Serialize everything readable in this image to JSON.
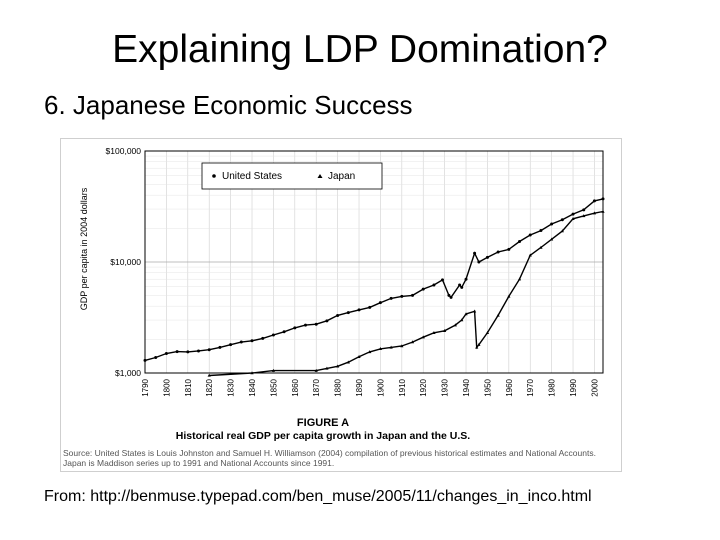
{
  "slide": {
    "title": "Explaining LDP Domination?",
    "subtitle": "6. Japanese Economic Success",
    "footer": "From: http://benmuse.typepad.com/ben_muse/2005/11/changes_in_inco.html"
  },
  "chart_data": {
    "type": "line",
    "figure_label": "FIGURE A",
    "title": "Historical real GDP per capita growth in Japan and the U.S.",
    "ylabel": "GDP per capita in 2004 dollars",
    "xlabel": "",
    "yscale": "log",
    "ylim": [
      1000,
      100000
    ],
    "xlim": [
      1790,
      2004
    ],
    "yticks": [
      "$1,000",
      "$10,000",
      "$100,000"
    ],
    "ytick_values": [
      1000,
      10000,
      100000
    ],
    "xticks": [
      "1790",
      "1800",
      "1810",
      "1820",
      "1830",
      "1840",
      "1850",
      "1860",
      "1870",
      "1880",
      "1890",
      "1900",
      "1910",
      "1920",
      "1930",
      "1940",
      "1950",
      "1960",
      "1970",
      "1980",
      "1990",
      "2000"
    ],
    "grid": true,
    "legend_position": "top-left",
    "series": [
      {
        "name": "United States",
        "marker": "dot",
        "color": "#000000",
        "x": [
          1790,
          1795,
          1800,
          1805,
          1810,
          1815,
          1820,
          1825,
          1830,
          1835,
          1840,
          1845,
          1850,
          1855,
          1860,
          1865,
          1870,
          1875,
          1880,
          1885,
          1890,
          1895,
          1900,
          1905,
          1910,
          1915,
          1920,
          1925,
          1929,
          1932,
          1933,
          1937,
          1938,
          1940,
          1944,
          1946,
          1950,
          1955,
          1960,
          1965,
          1970,
          1975,
          1980,
          1985,
          1990,
          1995,
          2000,
          2004
        ],
        "y": [
          1300,
          1380,
          1500,
          1560,
          1550,
          1580,
          1620,
          1700,
          1800,
          1900,
          1950,
          2050,
          2200,
          2350,
          2550,
          2700,
          2750,
          2950,
          3300,
          3500,
          3700,
          3900,
          4300,
          4700,
          4900,
          5000,
          5700,
          6200,
          6900,
          5000,
          4800,
          6200,
          5900,
          7000,
          12000,
          10000,
          11000,
          12300,
          13000,
          15300,
          17500,
          19200,
          22000,
          24000,
          27000,
          29500,
          35500,
          37000
        ]
      },
      {
        "name": "Japan",
        "marker": "triangle",
        "color": "#000000",
        "x": [
          1820,
          1840,
          1850,
          1870,
          1875,
          1880,
          1885,
          1890,
          1895,
          1900,
          1905,
          1910,
          1915,
          1920,
          1925,
          1930,
          1935,
          1938,
          1940,
          1944,
          1945,
          1946,
          1950,
          1955,
          1960,
          1965,
          1970,
          1975,
          1980,
          1985,
          1990,
          1995,
          2000,
          2004
        ],
        "y": [
          950,
          1000,
          1050,
          1050,
          1100,
          1150,
          1250,
          1400,
          1550,
          1650,
          1700,
          1750,
          1900,
          2100,
          2300,
          2400,
          2700,
          3000,
          3400,
          3600,
          1700,
          1800,
          2300,
          3300,
          4900,
          7000,
          11500,
          13500,
          16000,
          19000,
          24500,
          26000,
          27500,
          28500
        ]
      }
    ],
    "source_note_line1": "Source: United States is Louis Johnston and Samuel H. Williamson (2004) compilation of previous historical estimates and National Accounts.",
    "source_note_line2": "Japan is Maddison series up to 1991 and National Accounts since 1991."
  }
}
